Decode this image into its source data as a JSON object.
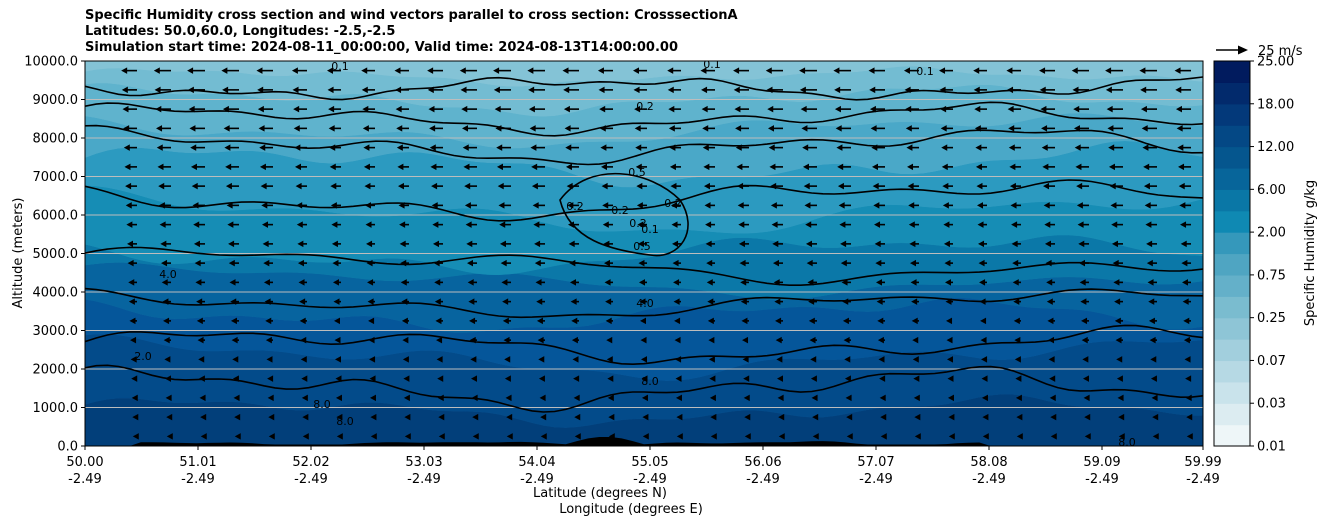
{
  "chart_data": {
    "type": "contour",
    "title_lines": [
      "Specific Humidity cross section and wind vectors parallel to cross section: CrosssectionA",
      "Latitudes: 50.0,60.0, Longitudes: -2.5,-2.5",
      "Simulation start time: 2024-08-11_00:00:00, Valid time: 2024-08-13T14:00:00.00"
    ],
    "ylabel": "Altitude (meters)",
    "xlabel_lat": "Latitude (degrees N)",
    "xlabel_lon": "Longitude (degrees E)",
    "ylim": [
      0,
      10000
    ],
    "y_ticks": [
      "0.0",
      "1000.0",
      "2000.0",
      "3000.0",
      "4000.0",
      "5000.0",
      "6000.0",
      "7000.0",
      "8000.0",
      "9000.0",
      "10000.0"
    ],
    "x_ticks": [
      {
        "lat": "50.00",
        "lon": "-2.49"
      },
      {
        "lat": "51.01",
        "lon": "-2.49"
      },
      {
        "lat": "52.02",
        "lon": "-2.49"
      },
      {
        "lat": "53.03",
        "lon": "-2.49"
      },
      {
        "lat": "54.04",
        "lon": "-2.49"
      },
      {
        "lat": "55.05",
        "lon": "-2.49"
      },
      {
        "lat": "56.06",
        "lon": "-2.49"
      },
      {
        "lat": "57.07",
        "lon": "-2.49"
      },
      {
        "lat": "58.08",
        "lon": "-2.49"
      },
      {
        "lat": "59.09",
        "lon": "-2.49"
      },
      {
        "lat": "59.99",
        "lon": "-2.49"
      }
    ],
    "colorbar": {
      "label": "Specific Humidity g/kg",
      "levels": [
        0.01,
        0.02,
        0.03,
        0.05,
        0.07,
        0.1,
        0.25,
        0.5,
        0.75,
        1.0,
        2.0,
        4.0,
        6.0,
        9.0,
        12.0,
        15.0,
        18.0,
        22.0,
        25.0
      ],
      "tick_labels": [
        "0.01",
        "0.03",
        "0.07",
        "0.25",
        "0.75",
        "2.00",
        "6.00",
        "12.00",
        "18.00",
        "25.00"
      ],
      "colors": [
        "#ffffff",
        "#eef6f8",
        "#dcecf1",
        "#c9e3eb",
        "#b6d9e4",
        "#a2cfdd",
        "#8ec5d6",
        "#7abccf",
        "#64b0c9",
        "#4fa5c2",
        "#3598bb",
        "#0f89b3",
        "#0a77a6",
        "#07659a",
        "#05568e",
        "#044885",
        "#03397a",
        "#022a6c",
        "#011b5e"
      ]
    },
    "wind_key": {
      "label": "25 m/s",
      "speed": 25
    },
    "contour_labels": [
      "0.1",
      "0.1",
      "0.1",
      "0.2",
      "0.5",
      "0.2",
      "0.2",
      "0.2",
      "0.2",
      "0.1",
      "0.5",
      "4.0",
      "4.0",
      "2.0",
      "8.0",
      "8.0",
      "8.0",
      "8.0"
    ],
    "levels_shown": [
      0.1,
      0.2,
      0.5,
      2.0,
      4.0,
      8.0
    ]
  }
}
